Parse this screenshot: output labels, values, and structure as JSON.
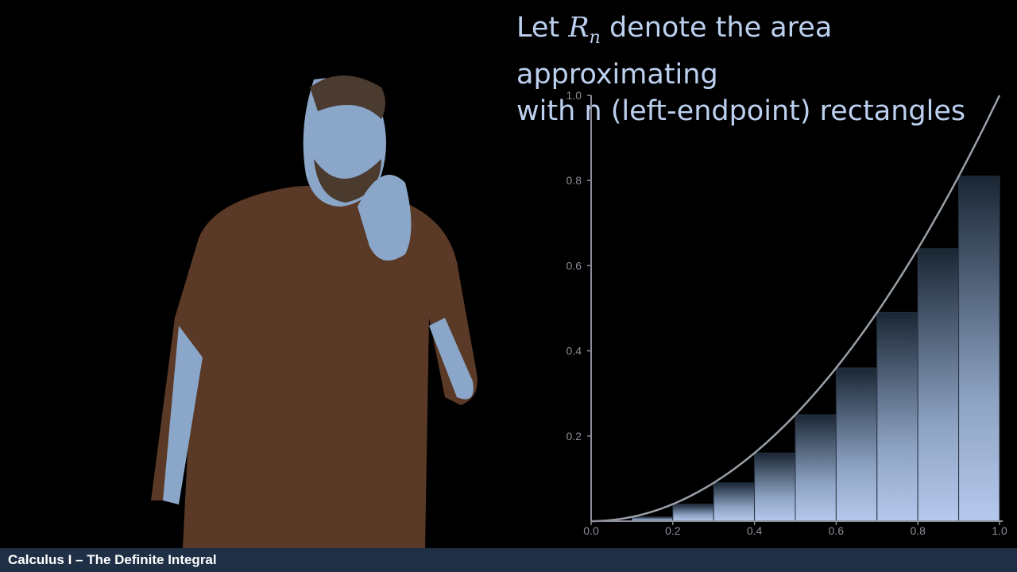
{
  "heading": {
    "line1_prefix": "Let ",
    "math_base": "R",
    "math_sub": "n",
    "line1_suffix": " denote the area approximating",
    "line2": "with n (left-endpoint) rectangles"
  },
  "footer": {
    "title": "Calculus I – The Definite Integral"
  },
  "colors": {
    "background": "#000000",
    "heading_text": "#bcd0f0",
    "axis": "#8a8f98",
    "curve": "#9aa0a8",
    "bar_light": "#b6c8ec",
    "bar_dark": "#1a2634",
    "footer_bg": "#1e2f46",
    "shirt": "#5a3a26",
    "skin": "#8aa6c8"
  },
  "chart_data": {
    "type": "bar",
    "function": "x^2",
    "xlim": [
      0,
      1
    ],
    "ylim": [
      0,
      1
    ],
    "x_ticks": [
      "0.0",
      "0.2",
      "0.4",
      "0.6",
      "0.8",
      "1.0"
    ],
    "y_ticks": [
      "0.2",
      "0.4",
      "0.6",
      "0.8",
      "1.0"
    ],
    "rect_left_x": [
      0.0,
      0.1,
      0.2,
      0.3,
      0.4,
      0.5,
      0.6,
      0.7,
      0.8,
      0.9
    ],
    "rect_heights": [
      0.0,
      0.01,
      0.04,
      0.09,
      0.16,
      0.25,
      0.36,
      0.49,
      0.64,
      0.81
    ],
    "rect_width": 0.1,
    "grid": false
  }
}
